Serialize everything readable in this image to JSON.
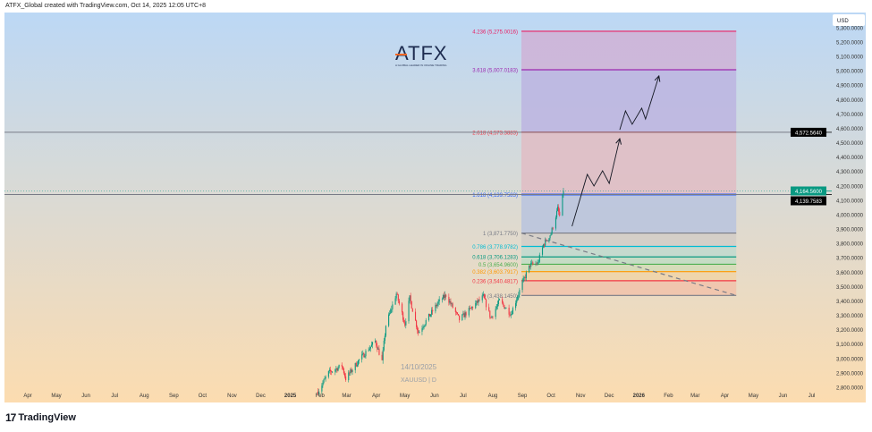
{
  "header": {
    "attribution": "ATFX_Global created with TradingView.com, Oct 14, 2025 12:05 UTC+8"
  },
  "watermark": {
    "logo": "ATFX",
    "tagline": "A GLOBAL LEADER IN ONLINE TRADING",
    "date": "14/10/2025",
    "symbol": "XAUUSD | D"
  },
  "footer": {
    "brand": "TradingView",
    "brand_mark": "17"
  },
  "price_axis": {
    "currency": "USD",
    "ticks": [
      "5,300.0000",
      "5,200.0000",
      "5,100.0000",
      "5,000.0000",
      "4,900.0000",
      "4,800.0000",
      "4,700.0000",
      "4,600.0000",
      "4,500.0000",
      "4,400.0000",
      "4,300.0000",
      "4,200.0000",
      "4,100.0000",
      "4,000.0000",
      "3,900.0000",
      "3,800.0000",
      "3,700.0000",
      "3,600.0000",
      "3,500.0000",
      "3,400.0000",
      "3,300.0000",
      "3,200.0000",
      "3,100.0000",
      "3,000.0000",
      "2,900.0000",
      "2,800.0000"
    ],
    "markers": [
      {
        "label": "4,572.5640",
        "value": 4572.564,
        "color": "#000000"
      },
      {
        "label": "4,139.7583",
        "value": 4139.7583,
        "color": "#000000"
      },
      {
        "label": "4,164.5600",
        "value": 4164.56,
        "color": "#089981"
      }
    ]
  },
  "time_axis": {
    "ticks": [
      {
        "label": "Apr",
        "date": "2024-04-01"
      },
      {
        "label": "May",
        "date": "2024-05-01"
      },
      {
        "label": "Jun",
        "date": "2024-06-01"
      },
      {
        "label": "Jul",
        "date": "2024-07-01"
      },
      {
        "label": "Aug",
        "date": "2024-08-01"
      },
      {
        "label": "Sep",
        "date": "2024-09-01"
      },
      {
        "label": "Oct",
        "date": "2024-10-01"
      },
      {
        "label": "Nov",
        "date": "2024-11-01"
      },
      {
        "label": "Dec",
        "date": "2024-12-01"
      },
      {
        "label": "2025",
        "date": "2025-01-01"
      },
      {
        "label": "Feb",
        "date": "2025-02-01"
      },
      {
        "label": "Mar",
        "date": "2025-03-01"
      },
      {
        "label": "Apr",
        "date": "2025-04-01"
      },
      {
        "label": "May",
        "date": "2025-05-01"
      },
      {
        "label": "Jun",
        "date": "2025-06-01"
      },
      {
        "label": "Jul",
        "date": "2025-07-01"
      },
      {
        "label": "Aug",
        "date": "2025-08-01"
      },
      {
        "label": "Sep",
        "date": "2025-09-01"
      },
      {
        "label": "Oct",
        "date": "2025-10-01"
      },
      {
        "label": "Nov",
        "date": "2025-11-01"
      },
      {
        "label": "Dec",
        "date": "2025-12-01"
      },
      {
        "label": "2026",
        "date": "2026-01-01"
      },
      {
        "label": "Feb",
        "date": "2026-02-01"
      },
      {
        "label": "Mar",
        "date": "2026-03-01"
      },
      {
        "label": "Apr",
        "date": "2026-04-01"
      },
      {
        "label": "May",
        "date": "2026-05-01"
      },
      {
        "label": "Jun",
        "date": "2026-06-01"
      },
      {
        "label": "Jul",
        "date": "2026-07-01"
      }
    ]
  },
  "chart_data": {
    "type": "candlestick",
    "symbol": "XAUUSD",
    "interval": "D",
    "ylim": [
      2760,
      5320
    ],
    "xlim": [
      "2024-03-10",
      "2026-07-28"
    ],
    "colors": {
      "up": "#089981",
      "down": "#f23645",
      "bg_top": "#bcd8f5",
      "bg_bottom": "#fcdcb0"
    },
    "close_waypoints": [
      [
        "2025-01-30",
        2770
      ],
      [
        "2025-02-10",
        2900
      ],
      [
        "2025-02-24",
        2950
      ],
      [
        "2025-02-28",
        2860
      ],
      [
        "2025-03-14",
        2990
      ],
      [
        "2025-03-31",
        3120
      ],
      [
        "2025-04-07",
        2980
      ],
      [
        "2025-04-11",
        3230
      ],
      [
        "2025-04-22",
        3450
      ],
      [
        "2025-05-01",
        3240
      ],
      [
        "2025-05-06",
        3420
      ],
      [
        "2025-05-15",
        3180
      ],
      [
        "2025-06-05",
        3390
      ],
      [
        "2025-06-13",
        3440
      ],
      [
        "2025-06-27",
        3270
      ],
      [
        "2025-07-22",
        3430
      ],
      [
        "2025-07-30",
        3280
      ],
      [
        "2025-08-08",
        3400
      ],
      [
        "2025-08-20",
        3310
      ],
      [
        "2025-09-02",
        3540
      ],
      [
        "2025-09-09",
        3650
      ],
      [
        "2025-09-17",
        3660
      ],
      [
        "2025-09-23",
        3790
      ],
      [
        "2025-10-01",
        3870
      ],
      [
        "2025-10-08",
        4040
      ],
      [
        "2025-10-10",
        3990
      ],
      [
        "2025-10-14",
        4164.56
      ]
    ],
    "horizontal_lines": [
      {
        "value": 4572.564,
        "color": "#787b86"
      },
      {
        "value": 4139.7583,
        "color": "#787b86"
      }
    ],
    "fib_extension": {
      "start": "2025-08-31",
      "end": "2026-04-13",
      "levels": [
        {
          "ratio": "4.236",
          "value": 5275.0016,
          "label": "4.236 (5,275.0016)",
          "color": "#e91e63",
          "fill": "#cfb2d6"
        },
        {
          "ratio": "3.618",
          "value": 5007.0183,
          "label": "3.618 (5,007.0183)",
          "color": "#9c27b0",
          "fill": "#bcb4e0"
        },
        {
          "ratio": "2.618",
          "value": 4573.3883,
          "label": "2.618 (4,573.3883)",
          "color": "#f23645",
          "fill": "#e1bcc4"
        },
        {
          "ratio": "1.618",
          "value": 4139.7583,
          "label": "1.618 (4,139.7583)",
          "color": "#2962ff",
          "fill": "#b9c3de"
        },
        {
          "ratio": "1",
          "value": 3871.775,
          "label": "1 (3,871.7750)",
          "color": "#787b86",
          "fill": "#d2cdc7"
        },
        {
          "ratio": "0.786",
          "value": 3778.9782,
          "label": "0.786 (3,778.9782)",
          "color": "#00bcd4",
          "fill": "#bfd9cf"
        },
        {
          "ratio": "0.618",
          "value": 3706.1283,
          "label": "0.618 (3,706.1283)",
          "color": "#089981",
          "fill": "#c1dcc4"
        },
        {
          "ratio": "0.5",
          "value": 3654.96,
          "label": "0.5 (3,654.9600)",
          "color": "#4caf50",
          "fill": "#d2dcb7"
        },
        {
          "ratio": "0.382",
          "value": 3603.7917,
          "label": "0.382 (3,603.7917)",
          "color": "#ff9800",
          "fill": "#f0d3a7"
        },
        {
          "ratio": "0.236",
          "value": 3540.4817,
          "label": "0.236 (3,540.4817)",
          "color": "#f23645",
          "fill": "#f1c2aa"
        },
        {
          "ratio": "0",
          "value": 3438.145,
          "label": "0 (3,438.1450)",
          "color": "#787b86",
          "fill": null
        }
      ]
    },
    "trend_line": {
      "from": [
        "2025-08-31",
        3871.775
      ],
      "to": [
        "2026-04-13",
        3438.145
      ],
      "style": "dashed",
      "color": "#787b86"
    },
    "projection_paths": [
      {
        "points": [
          [
            "2025-10-23",
            3919
          ],
          [
            "2025-11-08",
            4280
          ],
          [
            "2025-11-15",
            4199
          ],
          [
            "2025-11-24",
            4305
          ],
          [
            "2025-12-01",
            4217
          ],
          [
            "2025-12-12",
            4528
          ]
        ],
        "color": "#131722"
      },
      {
        "points": [
          [
            "2025-12-12",
            4590
          ],
          [
            "2025-12-18",
            4721
          ],
          [
            "2025-12-25",
            4628
          ],
          [
            "2026-01-04",
            4740
          ],
          [
            "2026-01-08",
            4665
          ],
          [
            "2026-01-22",
            4964
          ]
        ],
        "color": "#131722"
      }
    ]
  }
}
